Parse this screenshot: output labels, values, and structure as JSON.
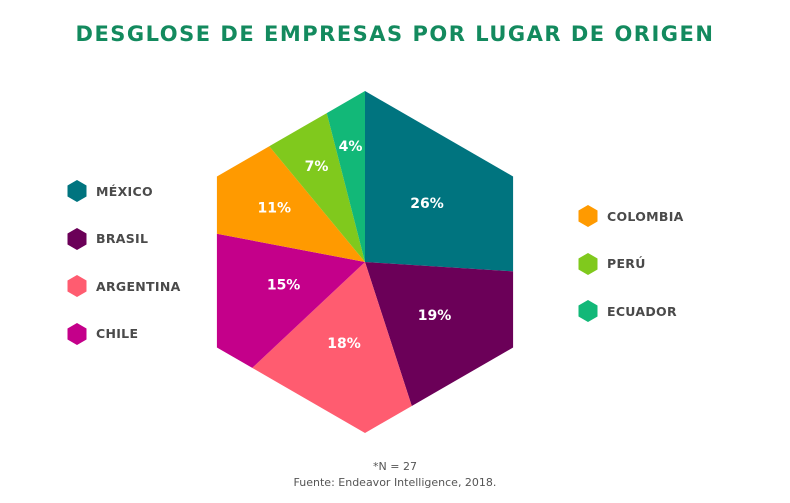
{
  "chart_data": {
    "type": "pie",
    "shape": "hexagon",
    "title": "DESGLOSE DE EMPRESAS POR LUGAR DE ORIGEN",
    "categories": [
      "MÉXICO",
      "BRASIL",
      "ARGENTINA",
      "CHILE",
      "COLOMBIA",
      "PERÚ",
      "ECUADOR"
    ],
    "values": [
      26,
      19,
      18,
      15,
      11,
      7,
      4
    ],
    "value_labels": [
      "26%",
      "19%",
      "18%",
      "15%",
      "11%",
      "7%",
      "4%"
    ],
    "colors": [
      "#00747f",
      "#6b0058",
      "#ff5c70",
      "#c4008a",
      "#ff9a00",
      "#80c91d",
      "#12b878"
    ],
    "legend_left": [
      "MÉXICO",
      "BRASIL",
      "ARGENTINA",
      "CHILE"
    ],
    "legend_right": [
      "COLOMBIA",
      "PERÚ",
      "ECUADOR"
    ],
    "note": "*N = 27",
    "source": "Fuente: Endeavor Intelligence, 2018."
  }
}
